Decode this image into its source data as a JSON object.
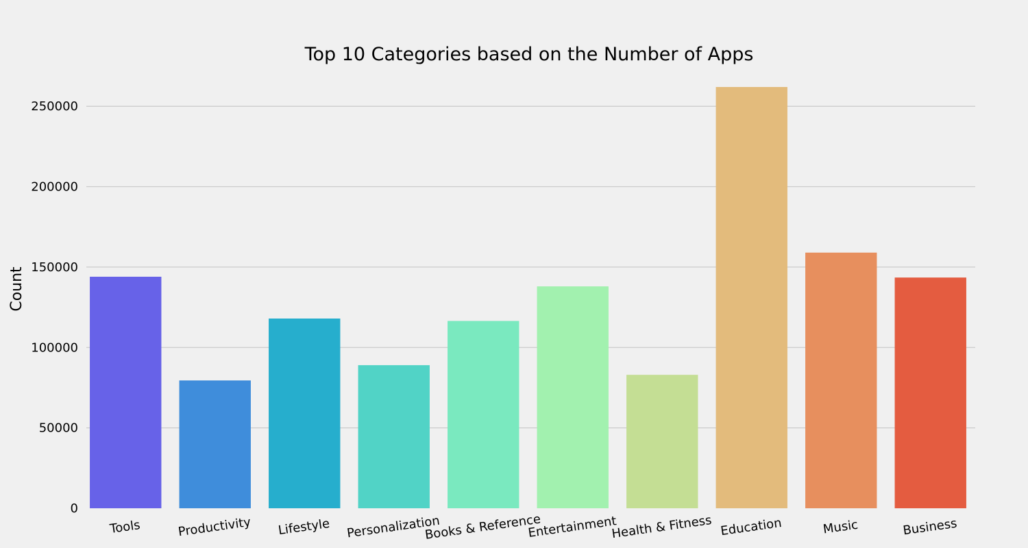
{
  "chart_data": {
    "type": "bar",
    "title": "Top 10 Categories based on the Number of Apps",
    "xlabel": "",
    "ylabel": "Count",
    "categories": [
      "Tools",
      "Productivity",
      "Lifestyle",
      "Personalization",
      "Books & Reference",
      "Entertainment",
      "Health & Fitness",
      "Education",
      "Music",
      "Business"
    ],
    "values": [
      144000,
      79500,
      118000,
      89000,
      116500,
      138000,
      83000,
      262000,
      159000,
      143500
    ],
    "colors": [
      "#6762e8",
      "#3f8ddb",
      "#26aecd",
      "#51d3c6",
      "#7ae9bf",
      "#a2f1af",
      "#c4de94",
      "#e3bb7c",
      "#e78f5e",
      "#e45c40"
    ],
    "yticks": [
      0,
      50000,
      100000,
      150000,
      200000,
      250000
    ],
    "ytick_labels": [
      "0",
      "50000",
      "100000",
      "150000",
      "200000",
      "250000"
    ],
    "ylim": [
      0,
      262000
    ],
    "grid": true,
    "xtick_rotation": 8
  }
}
